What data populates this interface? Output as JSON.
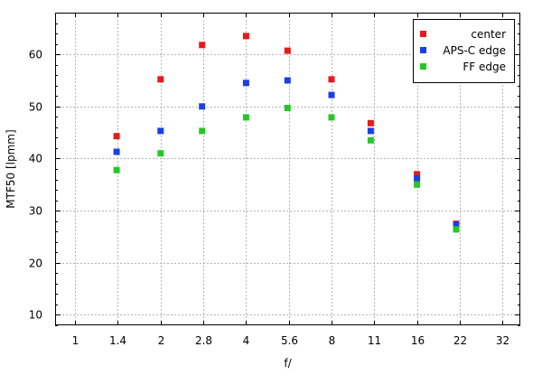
{
  "chart_data": {
    "type": "scatter",
    "xlabel": "f/",
    "ylabel": "MTF50 [lpmm]",
    "x_scale": "log2",
    "x_ticks": [
      "1",
      "1.4",
      "2",
      "2.8",
      "4",
      "5.6",
      "8",
      "11",
      "16",
      "22",
      "32"
    ],
    "xlim": [
      0.85,
      37
    ],
    "ylim": [
      8,
      68
    ],
    "y_ticks": [
      10,
      20,
      30,
      40,
      50,
      60
    ],
    "grid": true,
    "legend_position": "top-right",
    "series": [
      {
        "name": "center",
        "color": "#e61a1a",
        "points": [
          [
            1.4,
            44.3
          ],
          [
            2,
            55.2
          ],
          [
            2.8,
            61.8
          ],
          [
            4,
            63.5
          ],
          [
            5.6,
            60.7
          ],
          [
            8,
            55.2
          ],
          [
            11,
            46.8
          ],
          [
            16,
            37.0
          ],
          [
            22,
            27.5
          ]
        ]
      },
      {
        "name": "APS-C edge",
        "color": "#1a3fe6",
        "points": [
          [
            1.4,
            41.3
          ],
          [
            2,
            45.3
          ],
          [
            2.8,
            50.0
          ],
          [
            4,
            54.5
          ],
          [
            5.6,
            55.0
          ],
          [
            8,
            52.2
          ],
          [
            11,
            45.3
          ],
          [
            16,
            36.2
          ],
          [
            22,
            27.3
          ]
        ]
      },
      {
        "name": "FF edge",
        "color": "#26c726",
        "points": [
          [
            1.4,
            37.8
          ],
          [
            2,
            41.0
          ],
          [
            2.8,
            45.3
          ],
          [
            4,
            47.9
          ],
          [
            5.6,
            49.7
          ],
          [
            8,
            47.9
          ],
          [
            11,
            43.5
          ],
          [
            16,
            35.0
          ],
          [
            22,
            26.4
          ]
        ]
      }
    ]
  }
}
